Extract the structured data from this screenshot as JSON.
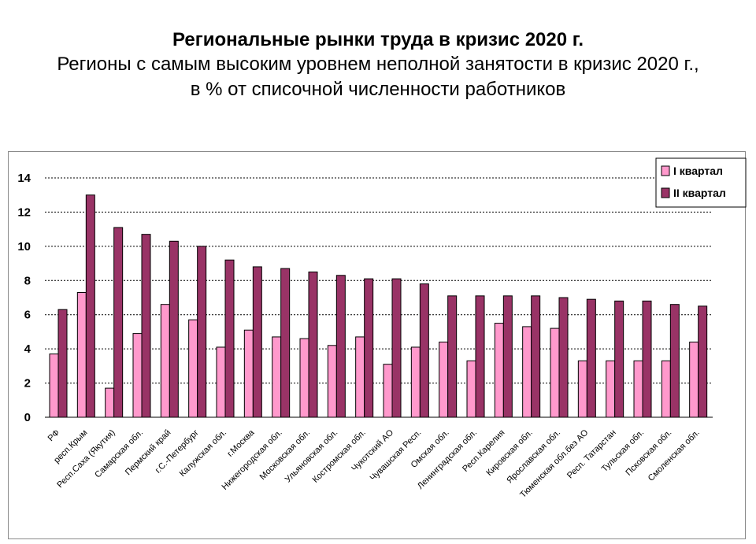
{
  "header": {
    "title": "Региональные рынки труда в кризис 2020 г.",
    "subtitle_line1": "Регионы с самым высоким уровнем неполной занятости в кризис 2020 г.,",
    "subtitle_line2": "в % от списочной численности работников"
  },
  "colors": {
    "q1": "#ff99cc",
    "q2": "#993366",
    "grid": "#000000"
  },
  "chart_data": {
    "type": "bar",
    "ylim": [
      0,
      14
    ],
    "yticks": [
      0,
      2,
      4,
      6,
      8,
      10,
      12,
      14
    ],
    "grid": true,
    "legend_position": "top-right",
    "categories": [
      "РФ",
      "респ.Крым",
      "Респ.Саха (Якутия)",
      "Самарская обл.",
      "Пермский край",
      "г.С.-Петербург",
      "Калужская обл.",
      "г.Москва",
      "Нижегородская обл.",
      "Московская обл.",
      "Ульяновская обл.",
      "Костромская обл.",
      "Чукотский АО",
      "Чувашская Респ.",
      "Омская обл.",
      "Ленинградская обл.",
      "Респ.Карелия",
      "Кировская обл.",
      "Ярославская обл.",
      "Тюменская обл.без АО",
      "Респ. Татарстан",
      "Тульская обл.",
      "Псковская обл.",
      "Смоленская обл."
    ],
    "series": [
      {
        "name": "I квартал",
        "values": [
          3.7,
          7.3,
          1.7,
          4.9,
          6.6,
          5.7,
          4.1,
          5.1,
          4.7,
          4.6,
          4.2,
          4.7,
          3.1,
          4.1,
          4.4,
          3.3,
          5.5,
          5.3,
          5.2,
          3.3,
          3.3,
          3.3,
          3.3,
          4.4
        ]
      },
      {
        "name": "II квартал",
        "values": [
          6.3,
          13.0,
          11.1,
          10.7,
          10.3,
          10.0,
          9.2,
          8.8,
          8.7,
          8.5,
          8.3,
          8.1,
          8.1,
          7.8,
          7.1,
          7.1,
          7.1,
          7.1,
          7.0,
          6.9,
          6.8,
          6.8,
          6.6,
          6.5
        ]
      }
    ]
  }
}
